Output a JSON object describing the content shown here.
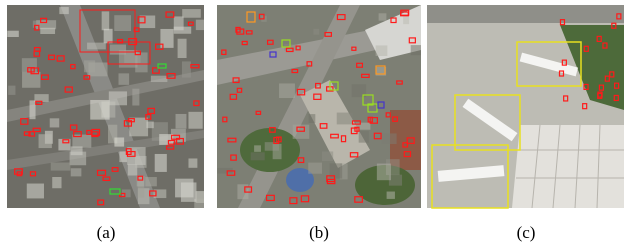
{
  "figure": {
    "panels": [
      {
        "caption": "(a)"
      },
      {
        "caption": "(b)"
      },
      {
        "caption": "(c)"
      }
    ]
  }
}
